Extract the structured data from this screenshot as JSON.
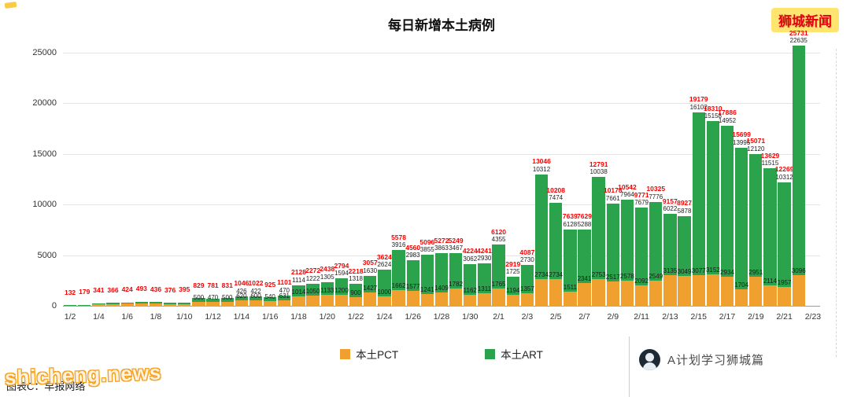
{
  "page": {
    "brand_badge": "狮城新闻",
    "watermark": "shicheng.news",
    "caption": "图表C：早报网络",
    "footer_account": "A计划学习狮城篇",
    "accent_colors": {
      "badge_bg": "#FFE470",
      "badge_text": "#E60012",
      "watermark": "#F6A21E",
      "total_label": "#F80000"
    }
  },
  "chart_data": {
    "type": "bar",
    "stacked": true,
    "title": "每日新增本土病例",
    "xlabel": "",
    "ylabel": "",
    "ylim": [
      0,
      25000
    ],
    "yticks": [
      0,
      5000,
      10000,
      15000,
      20000,
      25000
    ],
    "grid": true,
    "legend_position": "bottom",
    "categories": [
      "1/2",
      "1/3",
      "1/4",
      "1/5",
      "1/6",
      "1/7",
      "1/8",
      "1/9",
      "1/10",
      "1/11",
      "1/12",
      "1/13",
      "1/14",
      "1/15",
      "1/16",
      "1/17",
      "1/18",
      "1/19",
      "1/20",
      "1/21",
      "1/22",
      "1/23",
      "1/24",
      "1/25",
      "1/26",
      "1/27",
      "1/28",
      "1/29",
      "1/30",
      "1/31",
      "2/1",
      "2/2",
      "2/3",
      "2/4",
      "2/5",
      "2/6",
      "2/7",
      "2/8",
      "2/9",
      "2/10",
      "2/11",
      "2/12",
      "2/13",
      "2/14",
      "2/15",
      "2/16",
      "2/17",
      "2/18",
      "2/19",
      "2/20",
      "2/21",
      "2/22"
    ],
    "xtick_labels": [
      "1/2",
      "1/4",
      "1/6",
      "1/8",
      "1/10",
      "1/12",
      "1/14",
      "1/16",
      "1/18",
      "1/20",
      "1/22",
      "1/24",
      "1/26",
      "1/28",
      "1/30",
      "2/1",
      "2/3",
      "2/5",
      "2/7",
      "2/9",
      "2/11",
      "2/13",
      "2/15",
      "2/17",
      "2/19",
      "2/21",
      "2/23"
    ],
    "series": [
      {
        "name": "本土PCT",
        "color": "#F0A02E",
        "values": [
          90,
          120,
          230,
          240,
          280,
          320,
          280,
          240,
          250,
          500,
          470,
          500,
          620,
          600,
          540,
          631,
          1014,
          1050,
          1133,
          1200,
          900,
          1427,
          1000,
          1662,
          1577,
          1241,
          1409,
          1782,
          1162,
          1311,
          1765,
          1194,
          1357,
          2734,
          2734,
          1511,
          2341,
          2753,
          2517,
          2578,
          2092,
          2549,
          3135,
          3049,
          3077,
          3152,
          2934,
          1704,
          2951,
          2114,
          1957,
          3096
        ]
      },
      {
        "name": "本土ART",
        "color": "#2BA24C",
        "values": [
          42,
          59,
          111,
          126,
          144,
          173,
          156,
          136,
          145,
          329,
          311,
          331,
          426,
          422,
          385,
          470,
          1114,
          1222,
          1305,
          1594,
          1318,
          1630,
          2624,
          3916,
          2983,
          3855,
          3863,
          3467,
          3062,
          2930,
          4355,
          1725,
          2730,
          10312,
          7474,
          6128,
          5288,
          10038,
          7661,
          7964,
          7679,
          7776,
          6022,
          5878,
          16102,
          15158,
          14952,
          13995,
          12120,
          11515,
          10312,
          22635
        ]
      }
    ],
    "totals": [
      132,
      179,
      341,
      366,
      424,
      493,
      436,
      376,
      395,
      829,
      781,
      831,
      1046,
      1022,
      925,
      1101,
      2128,
      2272,
      2438,
      2794,
      2218,
      3057,
      3624,
      5578,
      4560,
      5096,
      5272,
      5249,
      4224,
      4241,
      6120,
      2919,
      4087,
      13046,
      10208,
      7639,
      7629,
      12791,
      10178,
      10542,
      9771,
      10325,
      9157,
      8927,
      19179,
      18310,
      17886,
      15699,
      15071,
      13629,
      12269,
      25731
    ]
  }
}
